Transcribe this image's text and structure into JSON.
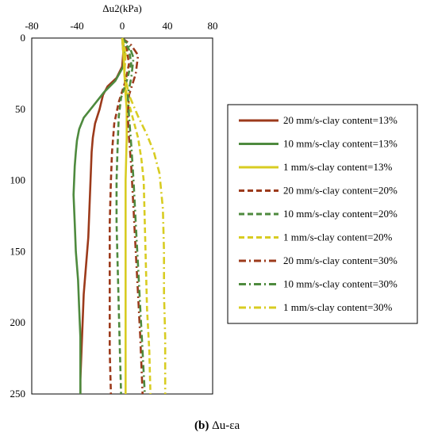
{
  "chart_data": {
    "type": "line",
    "title": "",
    "xlabel": "Δu2(kPa)",
    "ylabel": "",
    "caption": {
      "label": "(b)",
      "text": " Δu-εa"
    },
    "xlim": [
      -80,
      80
    ],
    "ylim": [
      0,
      250
    ],
    "x_ticks": [
      -80,
      -40,
      0,
      40,
      80
    ],
    "y_ticks": [
      0,
      50,
      100,
      150,
      200,
      250
    ],
    "y_reversed": true,
    "x_axis_position": "top",
    "grid": false,
    "legend_position": "right",
    "series": [
      {
        "name": "20 mm/s-clay content=13%",
        "color": "#9c3a1b",
        "dash": "solid",
        "points": [
          [
            0,
            0
          ],
          [
            1,
            10
          ],
          [
            0,
            20
          ],
          [
            -5,
            28
          ],
          [
            -13,
            34
          ],
          [
            -17,
            40
          ],
          [
            -20,
            50
          ],
          [
            -24,
            60
          ],
          [
            -26,
            70
          ],
          [
            -27,
            80
          ],
          [
            -28,
            100
          ],
          [
            -29,
            120
          ],
          [
            -30,
            140
          ],
          [
            -32,
            160
          ],
          [
            -34,
            180
          ],
          [
            -35,
            200
          ],
          [
            -36,
            220
          ],
          [
            -37,
            240
          ],
          [
            -37,
            250
          ]
        ]
      },
      {
        "name": "10 mm/s-clay content=13%",
        "color": "#4e8a3e",
        "dash": "solid",
        "points": [
          [
            0,
            0
          ],
          [
            2,
            10
          ],
          [
            1,
            20
          ],
          [
            -6,
            30
          ],
          [
            -16,
            38
          ],
          [
            -26,
            48
          ],
          [
            -34,
            56
          ],
          [
            -38,
            64
          ],
          [
            -40,
            72
          ],
          [
            -41,
            80
          ],
          [
            -42,
            90
          ],
          [
            -43,
            110
          ],
          [
            -42,
            130
          ],
          [
            -41,
            150
          ],
          [
            -39,
            170
          ],
          [
            -38,
            190
          ],
          [
            -37,
            210
          ],
          [
            -37,
            230
          ],
          [
            -37,
            250
          ]
        ]
      },
      {
        "name": "1 mm/s-clay content=13%",
        "color": "#d8cc22",
        "dash": "solid",
        "points": [
          [
            0,
            0
          ],
          [
            1,
            10
          ],
          [
            2,
            25
          ],
          [
            3,
            40
          ],
          [
            4,
            50
          ],
          [
            4,
            70
          ],
          [
            3,
            100
          ],
          [
            3,
            150
          ],
          [
            3,
            200
          ],
          [
            3,
            250
          ]
        ]
      },
      {
        "name": "20 mm/s-clay content=20%",
        "color": "#9c3a1b",
        "dash": "dash",
        "points": [
          [
            0,
            0
          ],
          [
            4,
            8
          ],
          [
            6,
            18
          ],
          [
            3,
            30
          ],
          [
            -3,
            45
          ],
          [
            -7,
            60
          ],
          [
            -9,
            80
          ],
          [
            -10,
            100
          ],
          [
            -11,
            130
          ],
          [
            -11,
            160
          ],
          [
            -11,
            190
          ],
          [
            -11,
            220
          ],
          [
            -10,
            250
          ]
        ]
      },
      {
        "name": "10 mm/s-clay content=20%",
        "color": "#4e8a3e",
        "dash": "dash",
        "points": [
          [
            0,
            0
          ],
          [
            6,
            8
          ],
          [
            8,
            18
          ],
          [
            4,
            30
          ],
          [
            -1,
            42
          ],
          [
            -3,
            55
          ],
          [
            -4,
            75
          ],
          [
            -5,
            100
          ],
          [
            -5,
            130
          ],
          [
            -4,
            160
          ],
          [
            -3,
            190
          ],
          [
            -2,
            220
          ],
          [
            -1,
            250
          ]
        ]
      },
      {
        "name": "1 mm/s-clay content=20%",
        "color": "#d8cc22",
        "dash": "dash",
        "points": [
          [
            0,
            0
          ],
          [
            3,
            10
          ],
          [
            2,
            25
          ],
          [
            4,
            40
          ],
          [
            9,
            55
          ],
          [
            14,
            70
          ],
          [
            17,
            85
          ],
          [
            19,
            100
          ],
          [
            20,
            130
          ],
          [
            21,
            160
          ],
          [
            22,
            190
          ],
          [
            24,
            220
          ],
          [
            25,
            250
          ]
        ]
      },
      {
        "name": "20 mm/s-clay content=30%",
        "color": "#9c3a1b",
        "dash": "dashdot",
        "points": [
          [
            0,
            0
          ],
          [
            8,
            5
          ],
          [
            14,
            12
          ],
          [
            12,
            25
          ],
          [
            6,
            40
          ],
          [
            5,
            55
          ],
          [
            6,
            70
          ],
          [
            8,
            90
          ],
          [
            10,
            120
          ],
          [
            12,
            150
          ],
          [
            14,
            180
          ],
          [
            16,
            210
          ],
          [
            18,
            250
          ]
        ]
      },
      {
        "name": "10 mm/s-clay content=30%",
        "color": "#4e8a3e",
        "dash": "dashdot",
        "points": [
          [
            0,
            0
          ],
          [
            6,
            5
          ],
          [
            10,
            14
          ],
          [
            8,
            28
          ],
          [
            5,
            40
          ],
          [
            6,
            55
          ],
          [
            8,
            75
          ],
          [
            10,
            100
          ],
          [
            12,
            130
          ],
          [
            14,
            160
          ],
          [
            16,
            190
          ],
          [
            18,
            220
          ],
          [
            20,
            250
          ]
        ]
      },
      {
        "name": "1 mm/s-clay content=30%",
        "color": "#d8cc22",
        "dash": "dashdot",
        "points": [
          [
            0,
            0
          ],
          [
            3,
            10
          ],
          [
            2,
            25
          ],
          [
            6,
            40
          ],
          [
            14,
            55
          ],
          [
            22,
            68
          ],
          [
            28,
            80
          ],
          [
            33,
            95
          ],
          [
            36,
            120
          ],
          [
            37,
            150
          ],
          [
            37,
            180
          ],
          [
            38,
            210
          ],
          [
            38,
            250
          ]
        ]
      }
    ]
  }
}
